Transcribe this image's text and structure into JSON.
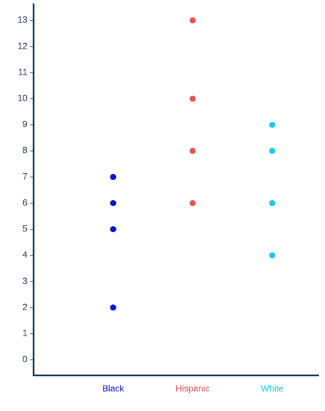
{
  "chart_data": {
    "type": "dot",
    "series": [
      {
        "name": "Black",
        "color": "#0a14d8",
        "values": [
          7,
          6,
          5,
          2
        ]
      },
      {
        "name": "Hispanic",
        "color": "#e8524e",
        "values": [
          13,
          10,
          8,
          6
        ]
      },
      {
        "name": "White",
        "color": "#1ec6f2",
        "values": [
          9,
          8,
          6,
          4
        ]
      }
    ],
    "ylim": [
      -0.6,
      13.65
    ],
    "yticks": [
      0,
      1,
      2,
      3,
      4,
      5,
      6,
      7,
      8,
      9,
      10,
      11,
      12,
      13
    ]
  }
}
